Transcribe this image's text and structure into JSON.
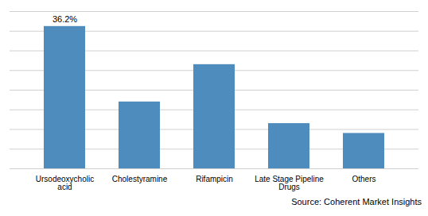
{
  "chart_data": {
    "type": "bar",
    "categories": [
      "Ursodeoxycholic\nacid",
      "Cholestyramine",
      "Rifampicin",
      "Late Stage Pipeline\nDrugs",
      "Others"
    ],
    "values": [
      36.2,
      17.0,
      26.5,
      11.5,
      9.0
    ],
    "color": "#4e8cbe",
    "ylim": [
      0,
      40
    ],
    "yticks": [
      0,
      5,
      10,
      15,
      20,
      25,
      30,
      35,
      40
    ],
    "grid": true,
    "tick_labels": "x",
    "annotations": [
      {
        "text": "36.2%",
        "x": "Ursodeoxycholic\nacid",
        "y": 36.2
      }
    ],
    "caption": "Source: Coherent Market Insights"
  }
}
